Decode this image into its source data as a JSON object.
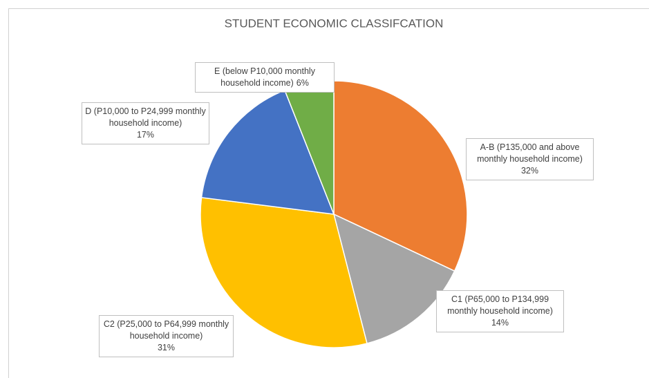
{
  "chart_data": {
    "type": "pie",
    "title": "STUDENT ECONOMIC CLASSIFCATION",
    "categories": [
      "A-B (P135,000 and above monthly household income)",
      "C1 (P65,000 to P134,999 monthly household income)",
      "C2 (P25,000 to P64,999 monthly household income)",
      "D (P10,000 to P24,999 monthly household income)",
      "E (below P10,000 monthly household income)"
    ],
    "values": [
      32,
      14,
      31,
      17,
      6
    ],
    "value_labels": [
      "32%",
      "14%",
      "31%",
      "17%",
      "6%"
    ],
    "colors": [
      "#ed7d31",
      "#a5a5a5",
      "#ffc000",
      "#4472c4",
      "#70ad47"
    ]
  }
}
